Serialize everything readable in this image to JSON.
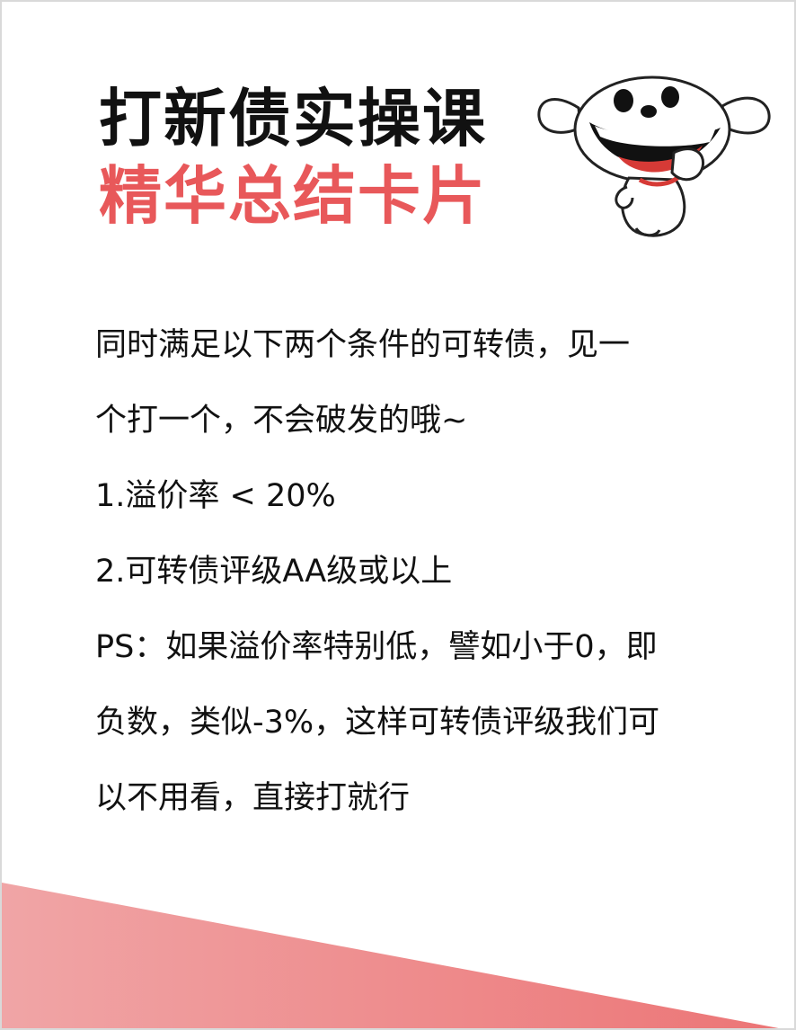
{
  "title": {
    "line1": "打新债实操课",
    "line2": "精华总结卡片"
  },
  "body": {
    "lines": [
      "同时满足以下两个条件的可转债，见一",
      "个打一个，不会破发的哦~",
      "1.溢价率 < 20%",
      "2.可转债评级AA级或以上",
      "PS：如果溢价率特别低，譬如小于0，即",
      "负数，类似-3%，这样可转债评级我们可",
      "以不用看，直接打就行"
    ]
  },
  "colors": {
    "title_dark": "#111111",
    "title_accent": "#e8585a",
    "band": "#ec7b7c",
    "mascot_mouth": "#d63a36"
  },
  "icons": {
    "mascot": "cartoon-dog-mascot-icon"
  }
}
